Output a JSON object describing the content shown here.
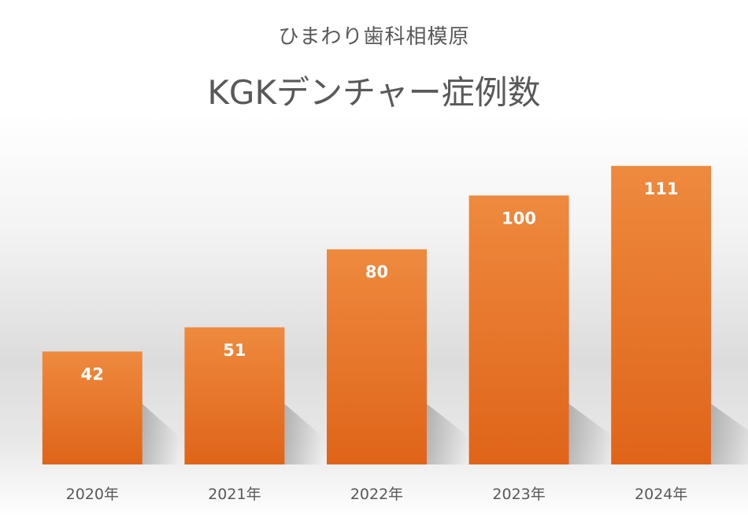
{
  "chart_data": {
    "type": "bar",
    "subtitle": "ひまわり歯科相模原",
    "title": "KGKデンチャー症例数",
    "categories": [
      "2020年",
      "2021年",
      "2022年",
      "2023年",
      "2024年"
    ],
    "values": [
      42,
      51,
      80,
      100,
      111
    ],
    "data_labels": [
      "42",
      "51",
      "80",
      "100",
      "111"
    ],
    "xlabel": "",
    "ylabel": "",
    "ylim": [
      0,
      120
    ],
    "grid": false,
    "legend": "none",
    "colors": {
      "bar_top": "#ee8a3e",
      "bar_bottom": "#df6419",
      "data_label": "#ffffff",
      "tick_label": "#595959",
      "title": "#595959"
    }
  }
}
